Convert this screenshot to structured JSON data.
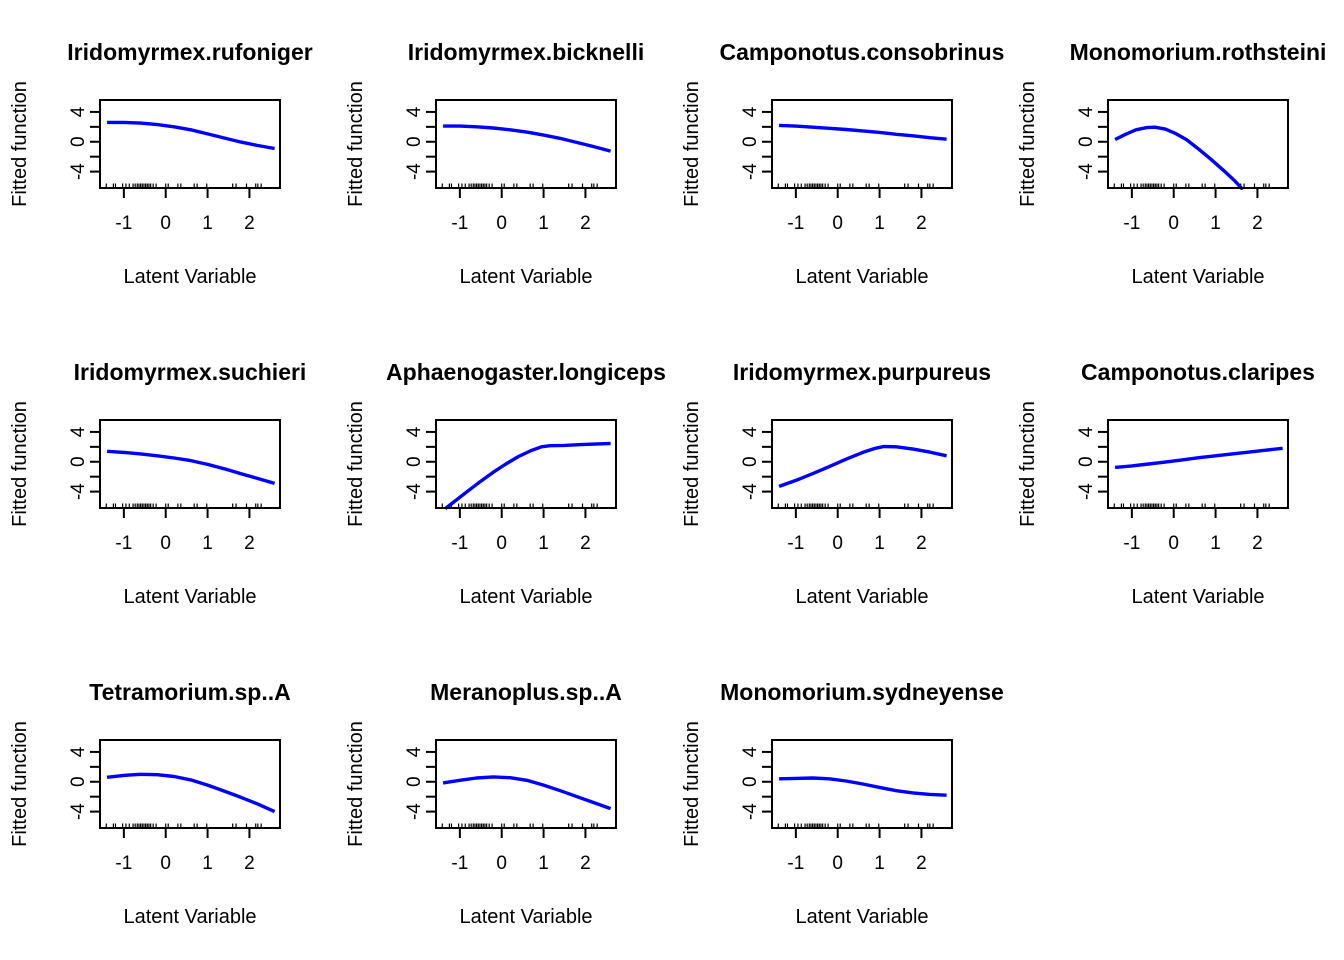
{
  "figure": {
    "background": "#ffffff",
    "axis_color": "#000000",
    "line_color": "#0000ff",
    "xlabel": "Latent Variable",
    "ylabel": "Fitted function",
    "xlim": [
      -1.57,
      2.73
    ],
    "ylim": [
      -6.2,
      5.6
    ],
    "x_ticks": [
      -1,
      0,
      1,
      2
    ],
    "y_ticks": [
      -4,
      -2,
      0,
      2,
      4
    ],
    "labeled_y_ticks": [
      -4,
      0,
      4
    ],
    "grid": "off",
    "rug_x": [
      -1.42,
      -1.25,
      -1.2,
      -1.03,
      -0.95,
      -0.87,
      -0.78,
      -0.73,
      -0.68,
      -0.64,
      -0.6,
      -0.56,
      -0.52,
      -0.48,
      -0.44,
      -0.4,
      -0.36,
      -0.3,
      -0.23,
      0,
      0.06,
      0.29,
      0.36,
      0.68,
      0.75,
      0.98,
      1.6,
      1.68,
      1.93,
      2.15,
      2.2,
      2.28
    ]
  },
  "chart_data": [
    {
      "type": "line",
      "title": "Iridomyrmex.rufoniger",
      "xlabel": "Latent Variable",
      "ylabel": "Fitted function",
      "xlim": [
        -1.57,
        2.73
      ],
      "ylim": [
        -6.2,
        5.6
      ],
      "x": [
        -1.4,
        -1,
        -0.6,
        -0.2,
        0.2,
        0.6,
        1,
        1.4,
        1.8,
        2.2,
        2.6
      ],
      "y": [
        2.6,
        2.6,
        2.5,
        2.3,
        2.0,
        1.6,
        1.05,
        0.5,
        -0.05,
        -0.5,
        -0.9
      ]
    },
    {
      "type": "line",
      "title": "Iridomyrmex.bicknelli",
      "xlabel": "Latent Variable",
      "ylabel": "Fitted function",
      "xlim": [
        -1.57,
        2.73
      ],
      "ylim": [
        -6.2,
        5.6
      ],
      "x": [
        -1.4,
        -1,
        -0.6,
        -0.2,
        0.2,
        0.6,
        1,
        1.4,
        1.8,
        2.2,
        2.6
      ],
      "y": [
        2.1,
        2.1,
        2.0,
        1.85,
        1.6,
        1.3,
        0.9,
        0.45,
        -0.1,
        -0.65,
        -1.25
      ]
    },
    {
      "type": "line",
      "title": "Camponotus.consobrinus",
      "xlabel": "Latent Variable",
      "ylabel": "Fitted function",
      "xlim": [
        -1.57,
        2.73
      ],
      "ylim": [
        -6.2,
        5.6
      ],
      "x": [
        -1.4,
        -1,
        -0.6,
        -0.2,
        0.2,
        0.6,
        1,
        1.4,
        1.8,
        2.2,
        2.6
      ],
      "y": [
        2.2,
        2.1,
        1.95,
        1.8,
        1.65,
        1.45,
        1.25,
        1.0,
        0.8,
        0.55,
        0.35
      ]
    },
    {
      "type": "line",
      "title": "Monomorium.rothsteini",
      "xlabel": "Latent Variable",
      "ylabel": "Fitted function",
      "xlim": [
        -1.57,
        2.73
      ],
      "ylim": [
        -6.2,
        5.6
      ],
      "x": [
        -1.4,
        -1.15,
        -0.9,
        -0.65,
        -0.45,
        -0.2,
        0.05,
        0.3,
        0.6,
        0.9,
        1.2,
        1.45,
        1.65
      ],
      "y": [
        0.3,
        1.0,
        1.6,
        1.9,
        1.95,
        1.7,
        1.1,
        0.3,
        -1.0,
        -2.4,
        -3.9,
        -5.2,
        -6.4
      ]
    },
    {
      "type": "line",
      "title": "Iridomyrmex.suchieri",
      "xlabel": "Latent Variable",
      "ylabel": "Fitted function",
      "xlim": [
        -1.57,
        2.73
      ],
      "ylim": [
        -6.2,
        5.6
      ],
      "x": [
        -1.4,
        -1,
        -0.6,
        -0.2,
        0.2,
        0.6,
        1,
        1.4,
        1.8,
        2.2,
        2.6
      ],
      "y": [
        1.4,
        1.25,
        1.05,
        0.8,
        0.5,
        0.15,
        -0.35,
        -0.95,
        -1.6,
        -2.25,
        -2.9
      ]
    },
    {
      "type": "line",
      "title": "Aphaenogaster.longiceps",
      "xlabel": "Latent Variable",
      "ylabel": "Fitted function",
      "xlim": [
        -1.57,
        2.73
      ],
      "ylim": [
        -6.2,
        5.6
      ],
      "x": [
        -1.35,
        -1.1,
        -0.8,
        -0.5,
        -0.2,
        0.1,
        0.4,
        0.7,
        0.95,
        1.15,
        1.5,
        1.9,
        2.3,
        2.6
      ],
      "y": [
        -6.3,
        -5.2,
        -3.9,
        -2.6,
        -1.4,
        -0.3,
        0.7,
        1.5,
        2.0,
        2.15,
        2.2,
        2.3,
        2.4,
        2.45
      ]
    },
    {
      "type": "line",
      "title": "Iridomyrmex.purpureus",
      "xlabel": "Latent Variable",
      "ylabel": "Fitted function",
      "xlim": [
        -1.57,
        2.73
      ],
      "ylim": [
        -6.2,
        5.6
      ],
      "x": [
        -1.4,
        -1,
        -0.6,
        -0.2,
        0.2,
        0.6,
        0.9,
        1.1,
        1.4,
        1.8,
        2.2,
        2.6
      ],
      "y": [
        -3.3,
        -2.5,
        -1.6,
        -0.65,
        0.35,
        1.25,
        1.8,
        2.05,
        2.0,
        1.7,
        1.3,
        0.8
      ]
    },
    {
      "type": "line",
      "title": "Camponotus.claripes",
      "xlabel": "Latent Variable",
      "ylabel": "Fitted function",
      "xlim": [
        -1.57,
        2.73
      ],
      "ylim": [
        -6.2,
        5.6
      ],
      "x": [
        -1.4,
        -1,
        -0.6,
        -0.2,
        0.2,
        0.6,
        1,
        1.4,
        1.8,
        2.2,
        2.6
      ],
      "y": [
        -0.75,
        -0.55,
        -0.3,
        -0.05,
        0.25,
        0.55,
        0.8,
        1.05,
        1.3,
        1.55,
        1.8
      ]
    },
    {
      "type": "line",
      "title": "Tetramorium.sp..A",
      "xlabel": "Latent Variable",
      "ylabel": "Fitted function",
      "xlim": [
        -1.57,
        2.73
      ],
      "ylim": [
        -6.2,
        5.6
      ],
      "x": [
        -1.4,
        -1,
        -0.6,
        -0.2,
        0.2,
        0.6,
        1,
        1.4,
        1.8,
        2.2,
        2.6
      ],
      "y": [
        0.6,
        0.85,
        1.0,
        0.95,
        0.7,
        0.25,
        -0.45,
        -1.25,
        -2.1,
        -3.0,
        -4.0
      ]
    },
    {
      "type": "line",
      "title": "Meranoplus.sp..A",
      "xlabel": "Latent Variable",
      "ylabel": "Fitted function",
      "xlim": [
        -1.57,
        2.73
      ],
      "ylim": [
        -6.2,
        5.6
      ],
      "x": [
        -1.4,
        -1,
        -0.6,
        -0.2,
        0.2,
        0.6,
        1,
        1.4,
        1.8,
        2.2,
        2.6
      ],
      "y": [
        -0.15,
        0.2,
        0.5,
        0.65,
        0.55,
        0.2,
        -0.45,
        -1.2,
        -2.0,
        -2.8,
        -3.6
      ]
    },
    {
      "type": "line",
      "title": "Monomorium.sydneyense",
      "xlabel": "Latent Variable",
      "ylabel": "Fitted function",
      "xlim": [
        -1.57,
        2.73
      ],
      "ylim": [
        -6.2,
        5.6
      ],
      "x": [
        -1.4,
        -1,
        -0.6,
        -0.2,
        0.2,
        0.6,
        1,
        1.4,
        1.8,
        2.2,
        2.6
      ],
      "y": [
        0.4,
        0.45,
        0.5,
        0.4,
        0.1,
        -0.3,
        -0.75,
        -1.2,
        -1.5,
        -1.7,
        -1.8
      ]
    }
  ]
}
